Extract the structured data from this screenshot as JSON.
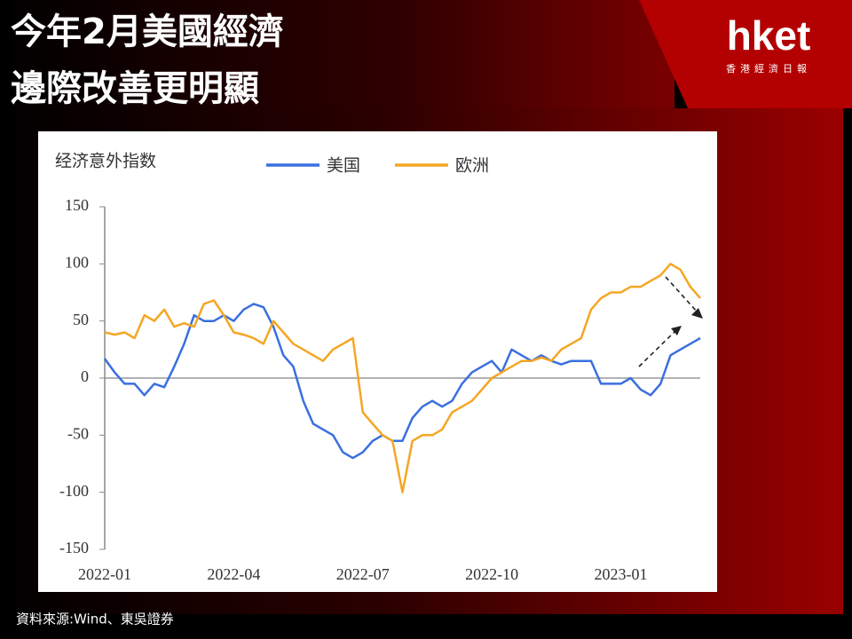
{
  "header": {
    "title": [
      "今年2月美國經濟",
      "邊際改善更明顯"
    ],
    "logo": "hket",
    "logo_sub": "香港經濟日報"
  },
  "source": "資料來源:Wind、東吳證券",
  "chart_data": {
    "type": "line",
    "title": "经济意外指数",
    "categories": [
      "2022-01",
      null,
      null,
      null,
      null,
      null,
      null,
      null,
      null,
      null,
      null,
      null,
      null,
      "2022-04",
      null,
      null,
      null,
      null,
      null,
      null,
      null,
      null,
      null,
      null,
      null,
      null,
      "2022-07",
      null,
      null,
      null,
      null,
      null,
      null,
      null,
      null,
      null,
      null,
      null,
      null,
      "2022-10",
      null,
      null,
      null,
      null,
      null,
      null,
      null,
      null,
      null,
      null,
      null,
      null,
      "2023-01",
      null,
      null,
      null,
      null,
      null,
      null,
      null,
      null
    ],
    "series": [
      {
        "name": "美国",
        "color": "#3a6fe0",
        "values": [
          17,
          5,
          -5,
          -5,
          -15,
          -5,
          -8,
          10,
          30,
          55,
          50,
          50,
          55,
          50,
          60,
          65,
          62,
          45,
          20,
          10,
          -20,
          -40,
          -45,
          -50,
          -65,
          -70,
          -65,
          -55,
          -50,
          -55,
          -55,
          -35,
          -25,
          -20,
          -25,
          -20,
          -5,
          5,
          10,
          15,
          5,
          25,
          20,
          15,
          20,
          15,
          12,
          15,
          15,
          15,
          -5,
          -5,
          -5,
          0,
          -10,
          -15,
          -5,
          20,
          25,
          30,
          35
        ]
      },
      {
        "name": "欧洲",
        "color": "#f5a623",
        "values": [
          40,
          38,
          40,
          35,
          55,
          50,
          60,
          45,
          48,
          45,
          65,
          68,
          55,
          40,
          38,
          35,
          30,
          50,
          40,
          30,
          25,
          20,
          15,
          25,
          30,
          35,
          -30,
          -40,
          -50,
          -55,
          -100,
          -55,
          -50,
          -50,
          -45,
          -30,
          -25,
          -20,
          -10,
          0,
          5,
          10,
          15,
          15,
          18,
          15,
          25,
          30,
          35,
          60,
          70,
          75,
          75,
          80,
          80,
          85,
          90,
          100,
          95,
          80,
          70
        ]
      }
    ],
    "ylim": [
      -150,
      150
    ],
    "yticks": [
      -150,
      -100,
      -50,
      0,
      50,
      100,
      150
    ],
    "grid": false
  }
}
